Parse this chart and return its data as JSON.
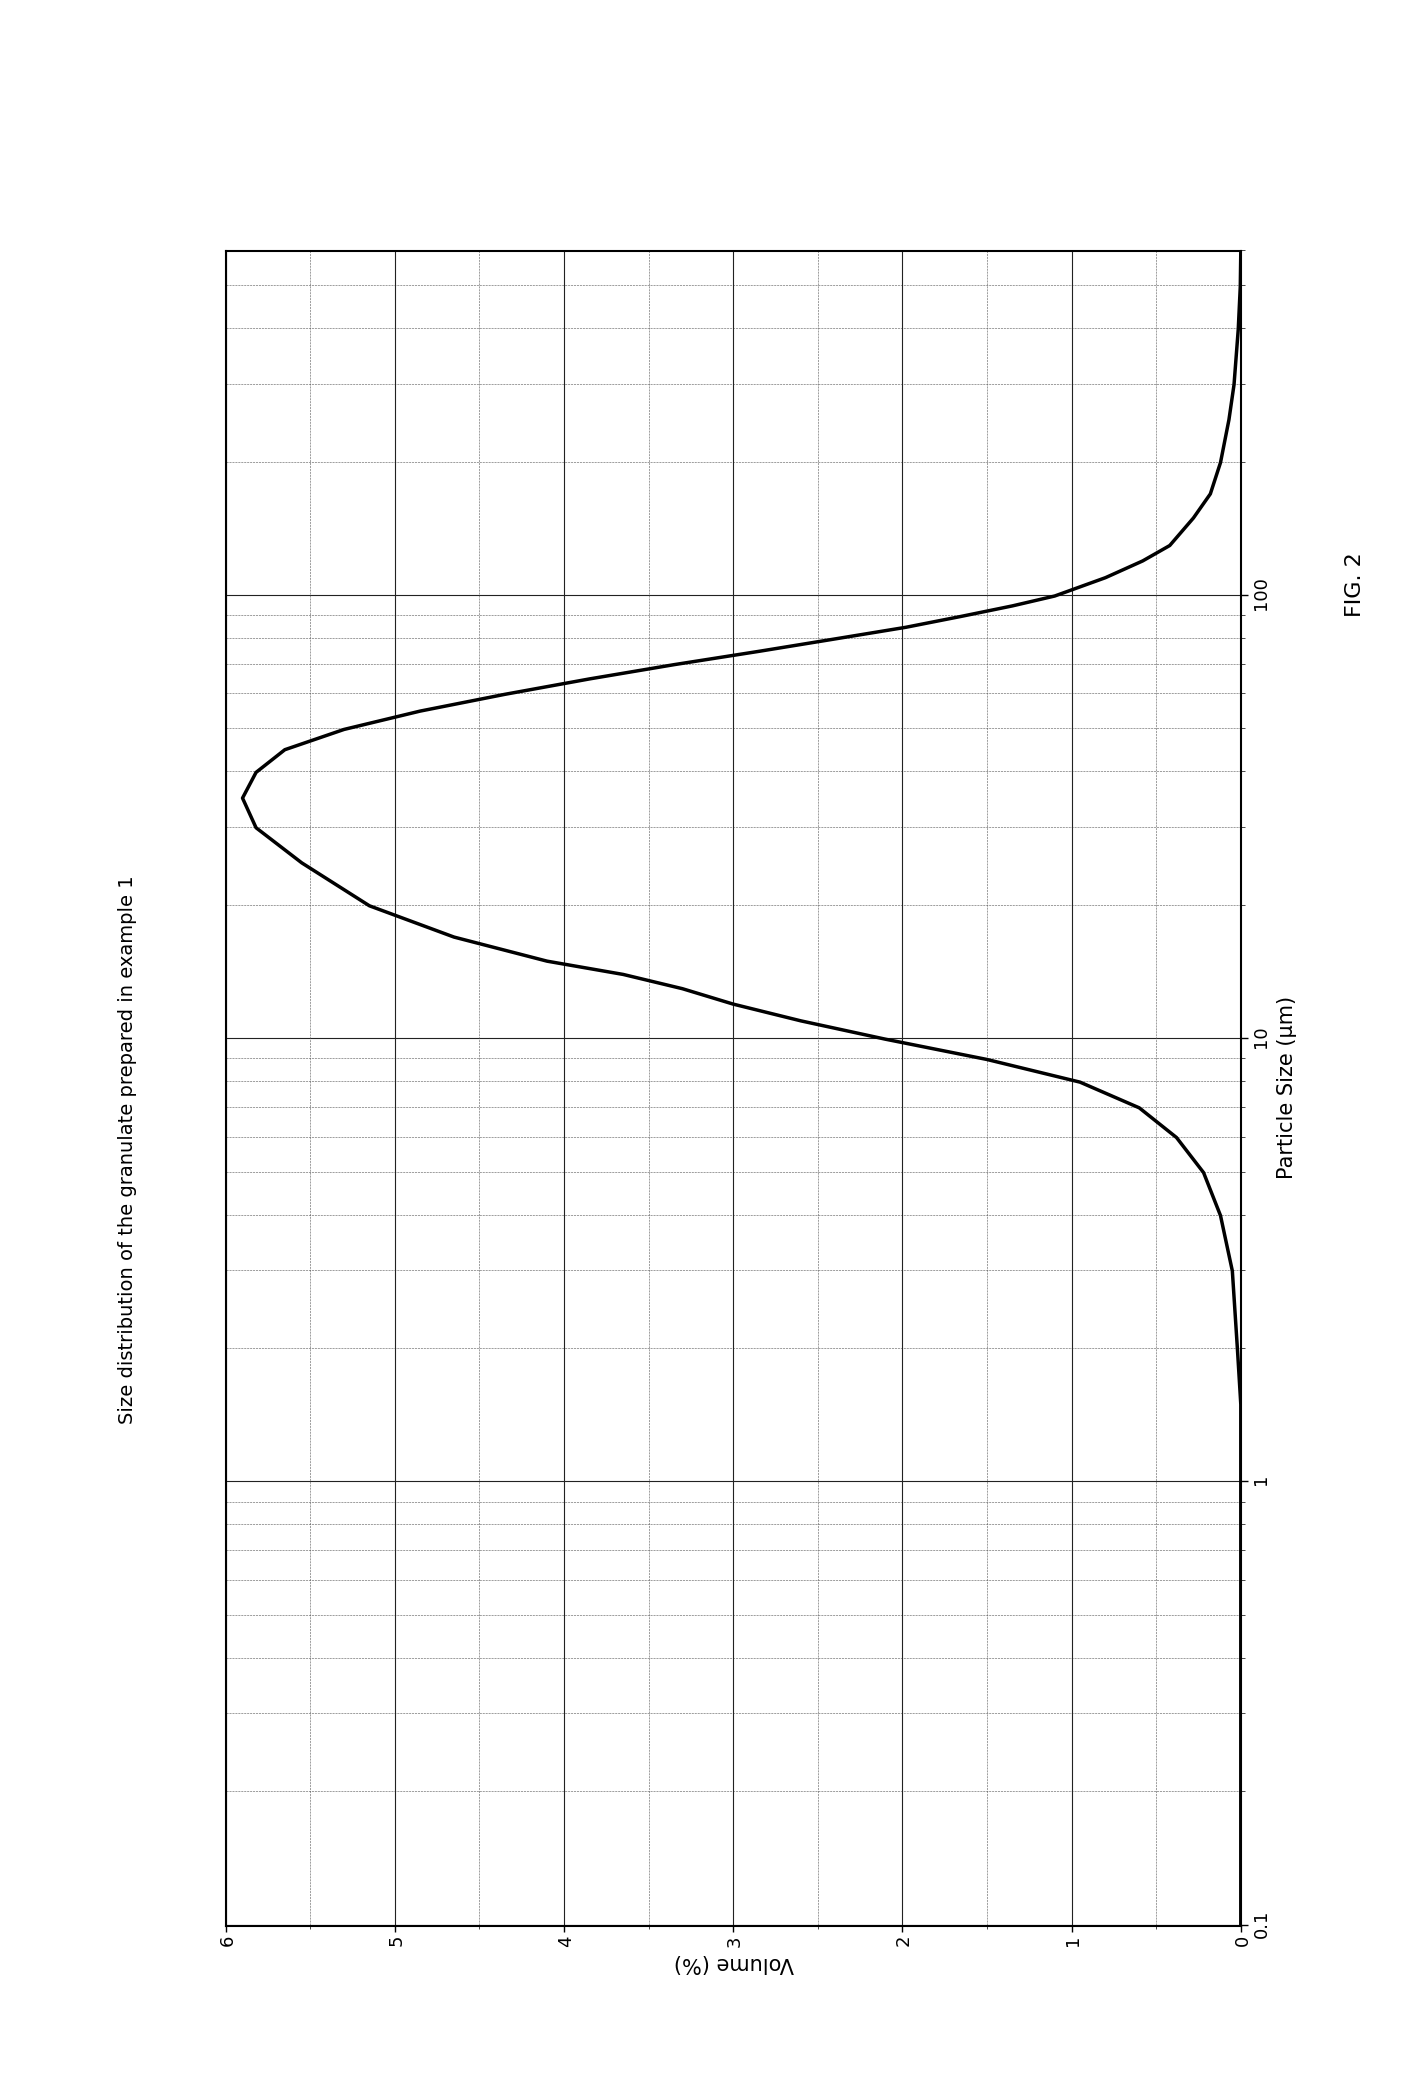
{
  "title": "Size distribution of the granulate prepared in example 1",
  "xlabel": "Particle Size (μm)",
  "ylabel": "Volume (%)",
  "fig_caption": "FIG. 2",
  "xlim_log": [
    0.1,
    600
  ],
  "ylim": [
    0,
    6
  ],
  "yticks": [
    0,
    1,
    2,
    3,
    4,
    5,
    6
  ],
  "background_color": "#ffffff",
  "line_color": "#000000",
  "line_width": 2.5,
  "curve_x": [
    0.1,
    0.15,
    0.2,
    0.3,
    0.5,
    0.8,
    1.0,
    1.5,
    2.0,
    3.0,
    4.0,
    5.0,
    6.0,
    7.0,
    8.0,
    9.0,
    10.0,
    11.0,
    12.0,
    13.0,
    14.0,
    15.0,
    17.0,
    20.0,
    25.0,
    30.0,
    35.0,
    40.0,
    45.0,
    50.0,
    55.0,
    60.0,
    65.0,
    70.0,
    75.0,
    80.0,
    85.0,
    90.0,
    95.0,
    100.0,
    110.0,
    120.0,
    130.0,
    150.0,
    170.0,
    200.0,
    250.0,
    300.0,
    400.0,
    500.0,
    600.0
  ],
  "curve_y": [
    0.0,
    0.0,
    0.0,
    0.0,
    0.0,
    0.0,
    0.0,
    0.0,
    0.02,
    0.05,
    0.12,
    0.22,
    0.38,
    0.6,
    0.95,
    1.5,
    2.1,
    2.6,
    3.0,
    3.3,
    3.65,
    4.1,
    4.65,
    5.15,
    5.55,
    5.82,
    5.9,
    5.82,
    5.65,
    5.3,
    4.85,
    4.35,
    3.85,
    3.35,
    2.85,
    2.4,
    1.98,
    1.65,
    1.35,
    1.1,
    0.8,
    0.58,
    0.42,
    0.28,
    0.18,
    0.12,
    0.07,
    0.04,
    0.015,
    0.003,
    0.0
  ],
  "title_fontsize": 14,
  "axis_label_fontsize": 15,
  "tick_fontsize": 13,
  "caption_fontsize": 16
}
